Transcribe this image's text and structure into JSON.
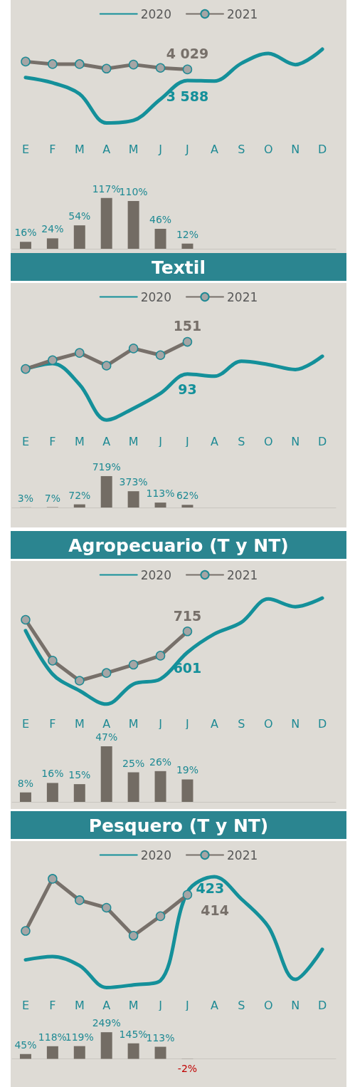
{
  "chart_data": [
    {
      "type": "line",
      "categories": [
        "E",
        "F",
        "M",
        "A",
        "M",
        "J",
        "J",
        "A",
        "S",
        "O",
        "N",
        "D"
      ],
      "tick_labels": "x",
      "legend": "top",
      "series": [
        {
          "name": "2020",
          "color": "#14909a",
          "marker": "none",
          "values": [
            3710,
            3500,
            3060,
            1910,
            2010,
            2850,
            3588,
            3570,
            4270,
            4660,
            4220,
            4830
          ],
          "value_labels": [
            null,
            null,
            null,
            null,
            null,
            null,
            "3 588",
            null,
            null,
            null,
            null,
            null
          ]
        },
        {
          "name": "2021",
          "color": "#77706a",
          "marker": "circle",
          "values": [
            4340,
            4240,
            4240,
            4060,
            4220,
            4090,
            4029,
            null,
            null,
            null,
            null,
            null
          ],
          "value_labels": [
            null,
            null,
            null,
            null,
            null,
            null,
            "4 029",
            null,
            null,
            null,
            null,
            null
          ]
        }
      ]
    },
    {
      "type": "bar",
      "categories": [
        null,
        null,
        null,
        null,
        null,
        null,
        null,
        null,
        null,
        null,
        null,
        null
      ],
      "tick_labels": false,
      "color": "#736c64",
      "values": [
        16,
        24,
        54,
        117,
        110,
        46,
        12,
        null,
        null,
        null,
        null,
        null
      ],
      "value_labels": [
        "16%",
        "24%",
        "54%",
        "117%",
        "110%",
        "46%",
        "12%",
        null,
        null,
        null,
        null,
        null
      ]
    },
    {
      "type": "line",
      "title": "Textil",
      "categories": [
        "E",
        "F",
        "M",
        "A",
        "M",
        "J",
        "J",
        "A",
        "S",
        "O",
        "N",
        "D"
      ],
      "tick_labels": "x",
      "legend": "top",
      "series": [
        {
          "name": "2020",
          "color": "#14909a",
          "marker": "none",
          "values": [
            102,
            112,
            74,
            10,
            31,
            58,
            93,
            89,
            116,
            110,
            101,
            125
          ],
          "value_labels": [
            null,
            null,
            null,
            null,
            null,
            null,
            "93",
            null,
            null,
            null,
            null,
            null
          ]
        },
        {
          "name": "2021",
          "color": "#77706a",
          "marker": "circle",
          "values": [
            102,
            118,
            131,
            108,
            139,
            127,
            151,
            null,
            null,
            null,
            null,
            null
          ],
          "value_labels": [
            null,
            null,
            null,
            null,
            null,
            null,
            "151",
            null,
            null,
            null,
            null,
            null
          ]
        }
      ]
    },
    {
      "type": "bar",
      "categories": [
        null,
        null,
        null,
        null,
        null,
        null,
        null,
        null,
        null,
        null,
        null,
        null
      ],
      "tick_labels": false,
      "color": "#736c64",
      "values": [
        3,
        7,
        72,
        719,
        373,
        113,
        62,
        null,
        null,
        null,
        null,
        null
      ],
      "value_labels": [
        "3%",
        "7%",
        "72%",
        "719%",
        "373%",
        "113%",
        "62%",
        null,
        null,
        null,
        null,
        null
      ]
    },
    {
      "type": "line",
      "title": "Agropecuario (T y NT)",
      "categories": [
        "E",
        "F",
        "M",
        "A",
        "M",
        "J",
        "J",
        "A",
        "S",
        "O",
        "N",
        "D"
      ],
      "tick_labels": "x",
      "legend": "top",
      "series": [
        {
          "name": "2020",
          "color": "#14909a",
          "marker": "none",
          "values": [
            719,
            483,
            393,
            320,
            429,
            456,
            601,
            701,
            764,
            891,
            849,
            896
          ],
          "value_labels": [
            null,
            null,
            null,
            null,
            null,
            null,
            "601",
            null,
            null,
            null,
            null,
            null
          ]
        },
        {
          "name": "2021",
          "color": "#77706a",
          "marker": "circle",
          "values": [
            778,
            556,
            447,
            489,
            534,
            583,
            715,
            null,
            null,
            null,
            null,
            null
          ],
          "value_labels": [
            null,
            null,
            null,
            null,
            null,
            null,
            "715",
            null,
            null,
            null,
            null,
            null
          ]
        }
      ]
    },
    {
      "type": "bar",
      "categories": [
        null,
        null,
        null,
        null,
        null,
        null,
        null,
        null,
        null,
        null,
        null,
        null
      ],
      "tick_labels": false,
      "color": "#736c64",
      "values": [
        8,
        16,
        15,
        47,
        25,
        26,
        19,
        null,
        null,
        null,
        null,
        null
      ],
      "value_labels": [
        "8%",
        "16%",
        "15%",
        "47%",
        "25%",
        "26%",
        "19%",
        null,
        null,
        null,
        null,
        null
      ]
    },
    {
      "type": "line",
      "title": "Pesquero (T y NT)",
      "categories": [
        "E",
        "F",
        "M",
        "A",
        "M",
        "J",
        "J",
        "A",
        "S",
        "O",
        "N",
        "D"
      ],
      "tick_labels": "x",
      "legend": "top",
      "series": [
        {
          "name": "2020",
          "color": "#14909a",
          "marker": "none",
          "values": [
            198,
            209,
            179,
            106,
            115,
            129,
            423,
            474,
            400,
            308,
            133,
            233
          ],
          "value_labels": [
            null,
            null,
            null,
            null,
            null,
            null,
            "423",
            null,
            null,
            null,
            null,
            null
          ]
        },
        {
          "name": "2021",
          "color": "#77706a",
          "marker": "circle",
          "values": [
            294,
            467,
            396,
            371,
            278,
            343,
            414,
            null,
            null,
            null,
            null,
            null
          ],
          "value_labels": [
            null,
            null,
            null,
            null,
            null,
            null,
            "414",
            null,
            null,
            null,
            null,
            null
          ]
        }
      ]
    },
    {
      "type": "bar",
      "categories": [
        null,
        null,
        null,
        null,
        null,
        null,
        null,
        null,
        null,
        null,
        null,
        null
      ],
      "tick_labels": false,
      "color": "#736c64",
      "values": [
        45,
        118,
        119,
        249,
        145,
        113,
        -2,
        null,
        null,
        null,
        null,
        null
      ],
      "value_labels": [
        "45%",
        "118%",
        "119%",
        "249%",
        "145%",
        "113%",
        "-2%",
        null,
        null,
        null,
        null,
        null
      ]
    }
  ]
}
